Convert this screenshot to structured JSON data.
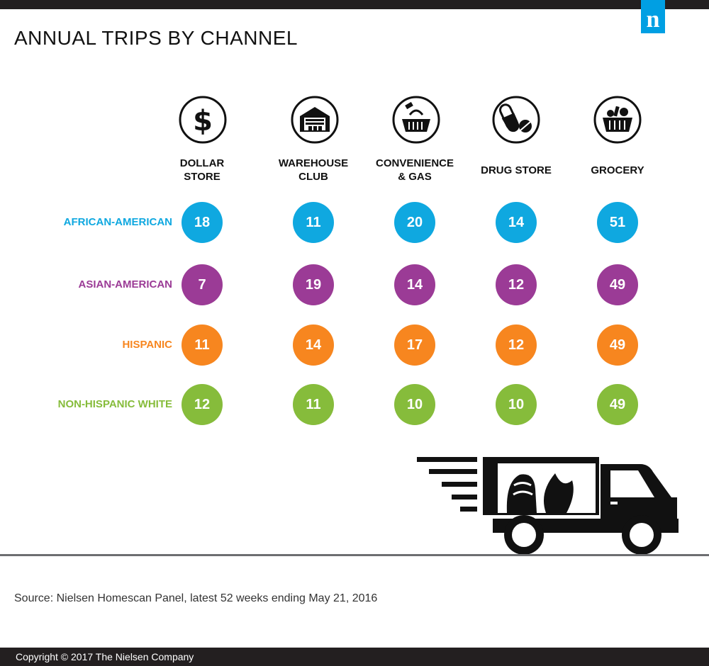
{
  "brand": {
    "logo_letter": "n",
    "logo_color": "#009fe3"
  },
  "title": "ANNUAL TRIPS BY CHANNEL",
  "source": "Source: Nielsen Homescan Panel, latest 52 weeks ending May 21, 2016",
  "copyright": "Copyright © 2017 The Nielsen Company",
  "icons": [
    "dollar-icon",
    "warehouse-icon",
    "convenience-basket-icon",
    "pill-icon",
    "grocery-basket-icon",
    "delivery-truck-icon"
  ],
  "chart_data": {
    "type": "table",
    "title": "ANNUAL TRIPS BY CHANNEL",
    "columns": [
      {
        "label_lines": [
          "DOLLAR",
          "STORE"
        ]
      },
      {
        "label_lines": [
          "WAREHOUSE",
          "CLUB"
        ]
      },
      {
        "label_lines": [
          "CONVENIENCE",
          "& GAS"
        ]
      },
      {
        "label_lines": [
          "DRUG STORE"
        ]
      },
      {
        "label_lines": [
          "GROCERY"
        ]
      }
    ],
    "series": [
      {
        "name": "AFRICAN-AMERICAN",
        "color": "#0fa8e0",
        "values": [
          18,
          11,
          20,
          14,
          51
        ]
      },
      {
        "name": "ASIAN-AMERICAN",
        "color": "#9b3b96",
        "values": [
          7,
          19,
          14,
          12,
          49
        ]
      },
      {
        "name": "HISPANIC",
        "color": "#f7861f",
        "values": [
          11,
          14,
          17,
          12,
          49
        ]
      },
      {
        "name": "NON-HISPANIC WHITE",
        "color": "#86bc3b",
        "values": [
          12,
          11,
          10,
          10,
          49
        ]
      }
    ]
  }
}
